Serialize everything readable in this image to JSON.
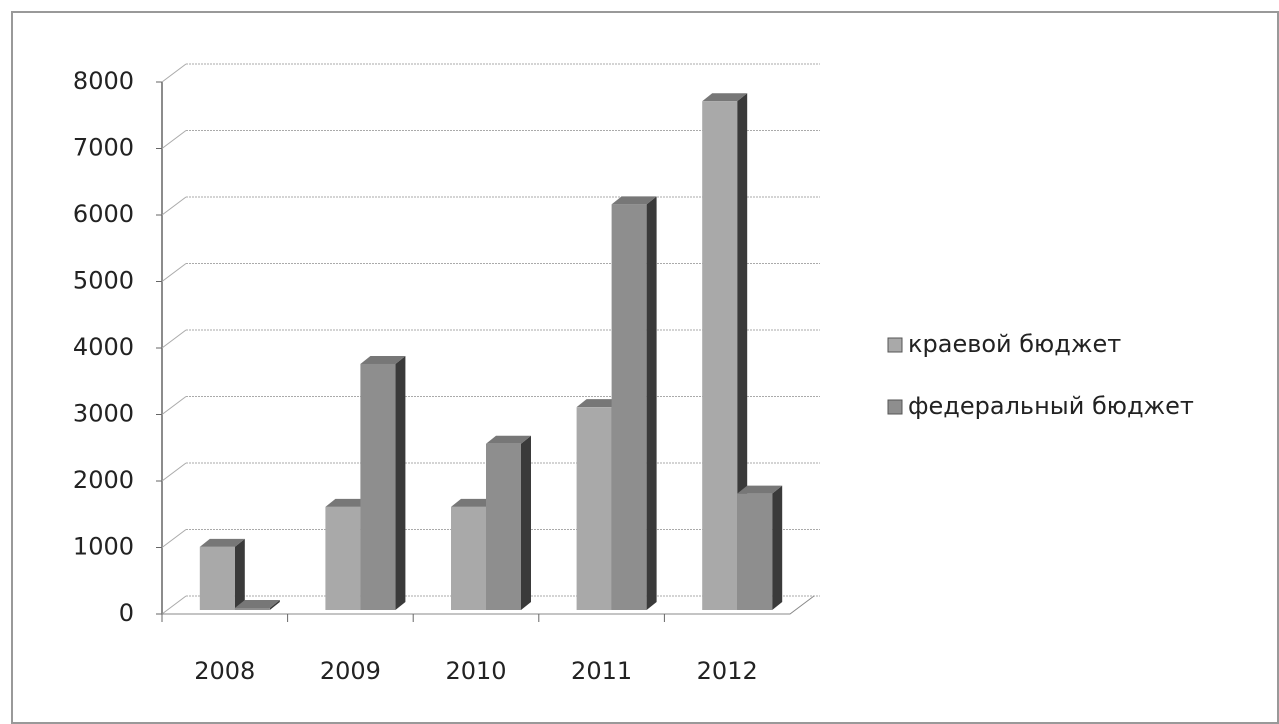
{
  "chart_data": {
    "type": "bar3d",
    "categories": [
      "2008",
      "2009",
      "2010",
      "2011",
      "2012"
    ],
    "series": [
      {
        "name": "краевой бюджет",
        "color": "#a9a9a9",
        "values": [
          950,
          1550,
          1550,
          3050,
          7650
        ]
      },
      {
        "name": "федеральный бюджет",
        "color": "#8e8e8e",
        "values": [
          30,
          3700,
          2500,
          6100,
          1750
        ]
      }
    ],
    "ylim": [
      0,
      8000
    ],
    "yticks": [
      0,
      1000,
      2000,
      3000,
      4000,
      5000,
      6000,
      7000,
      8000
    ],
    "grid": true,
    "legend": "right"
  }
}
